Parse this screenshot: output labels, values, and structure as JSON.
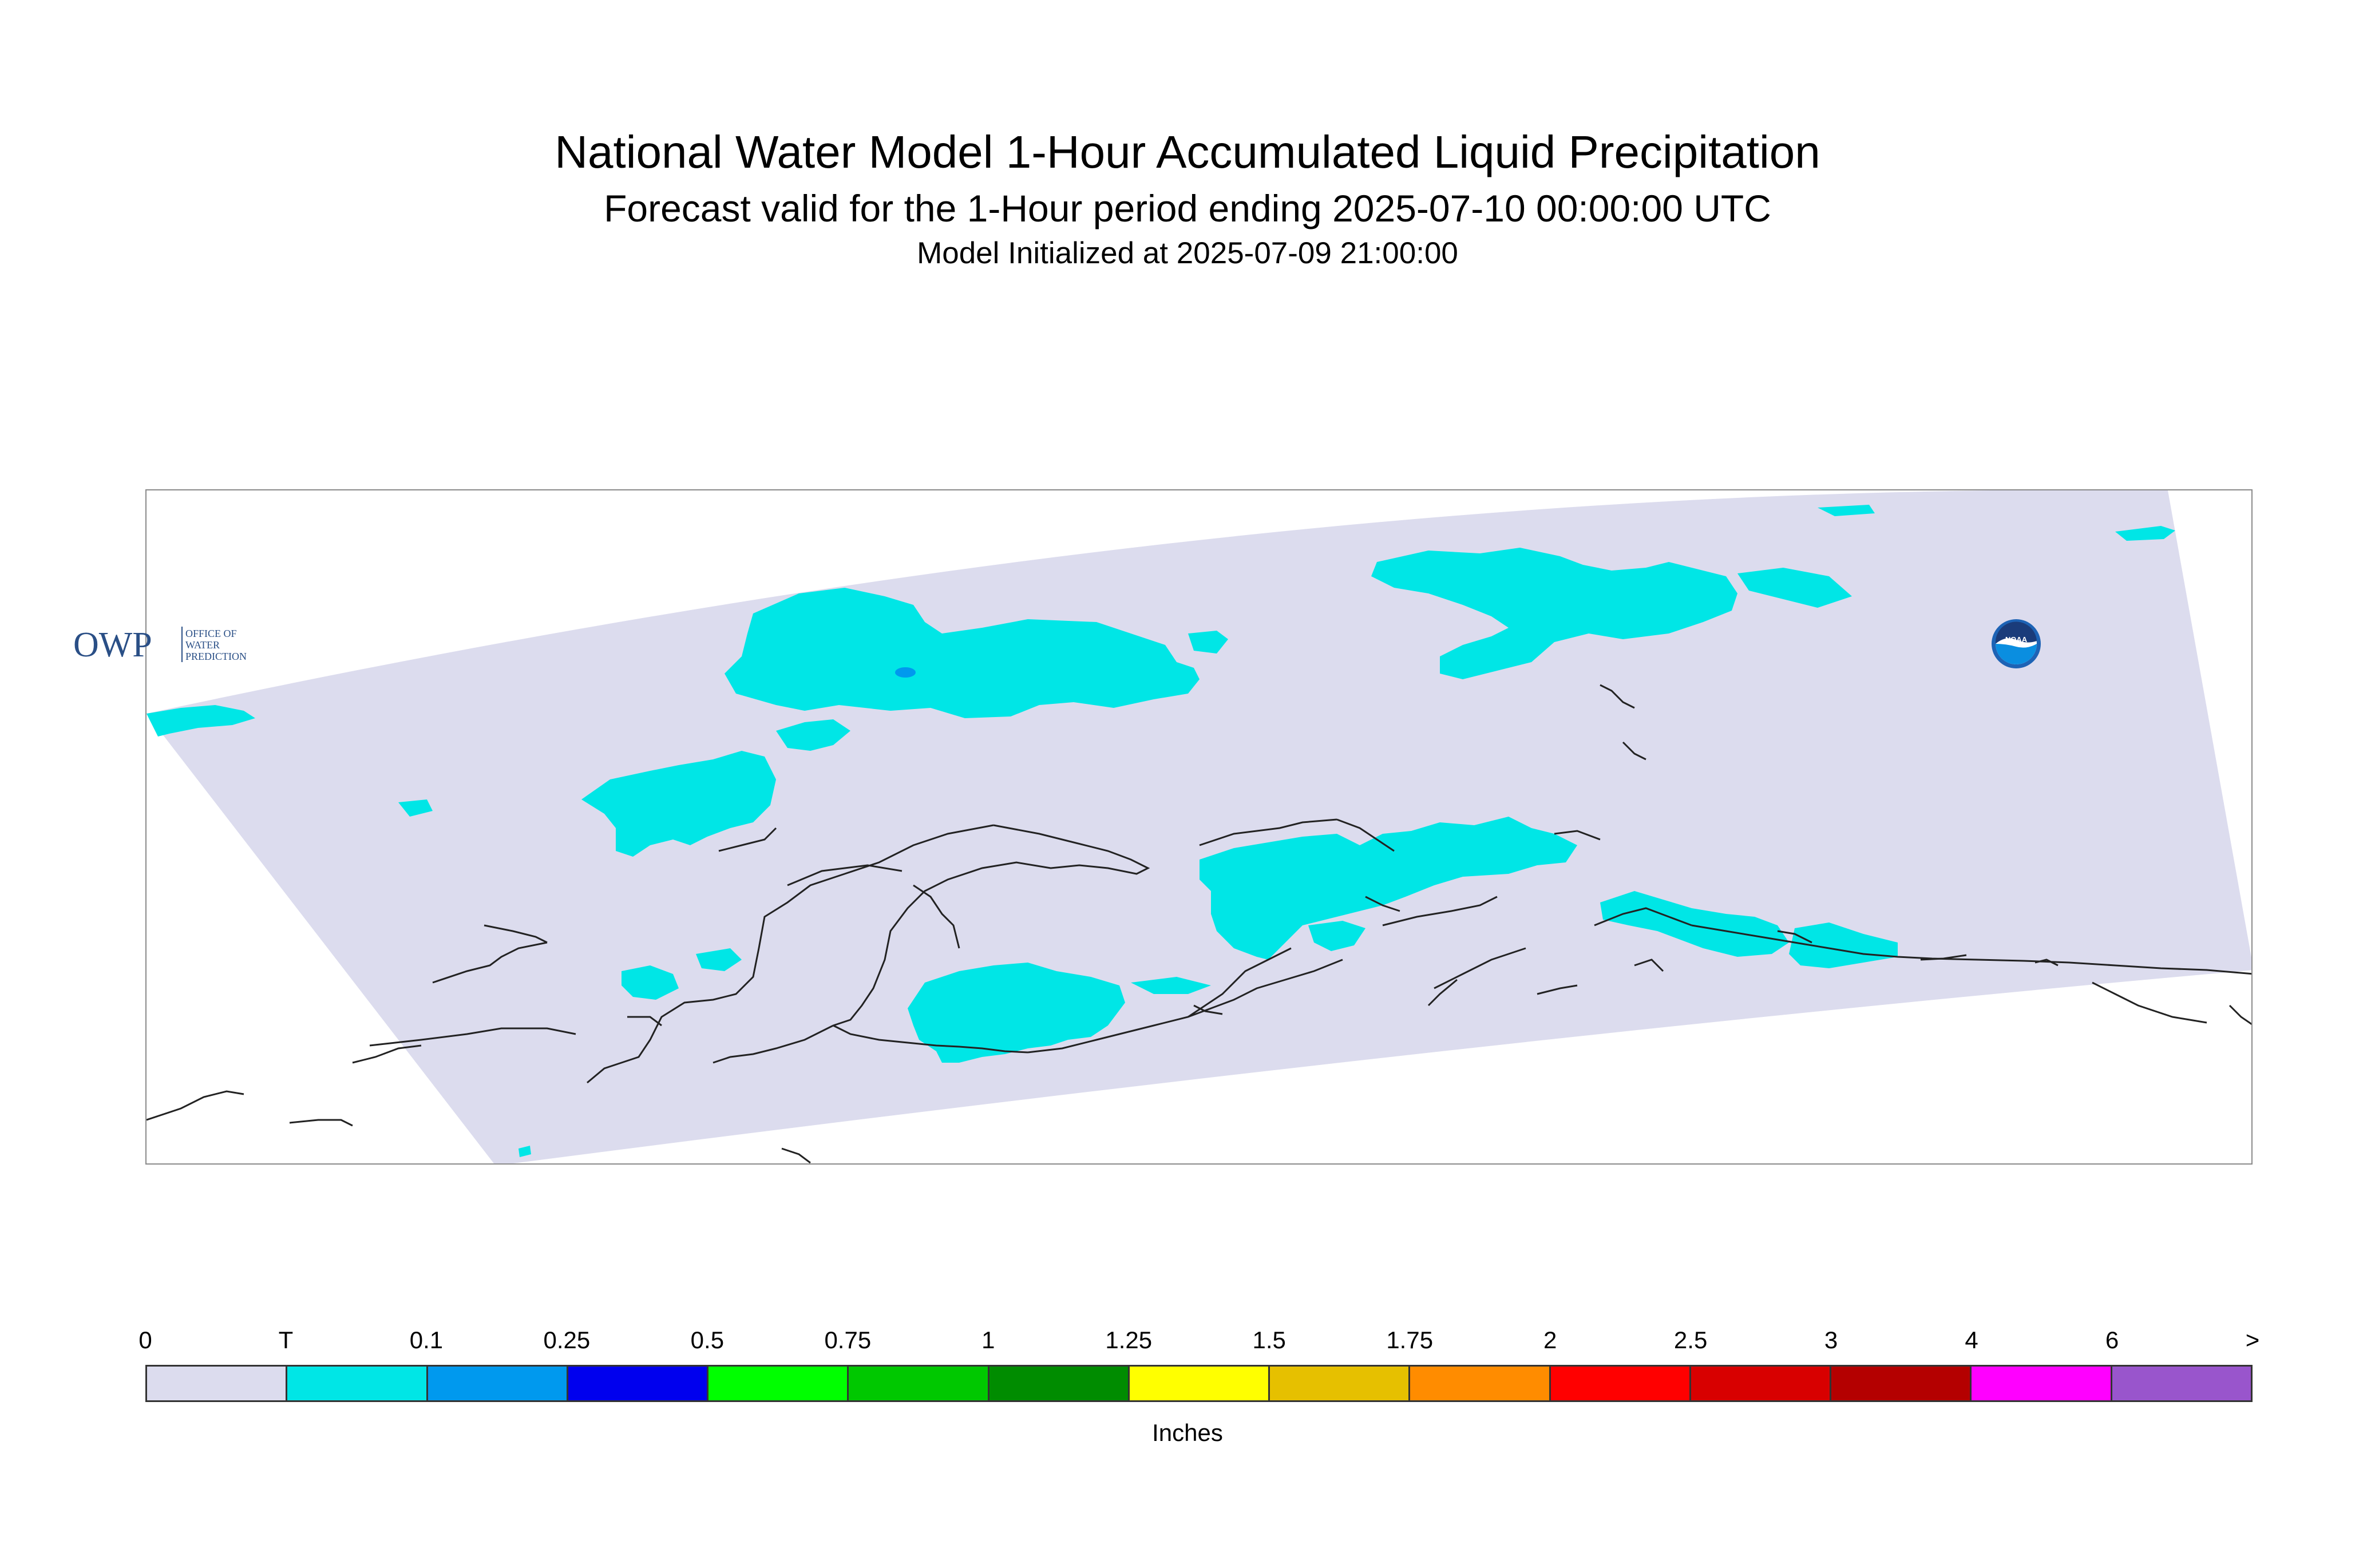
{
  "title": "National Water Model 1-Hour Accumulated Liquid Precipitation",
  "subtitle": "Forecast valid for the 1-Hour period ending 2025-07-10 00:00:00 UTC",
  "init_line": "Model Initialized at 2025-07-09 21:00:00",
  "logos": {
    "owp_mark": "OWP",
    "owp_text": [
      "OFFICE OF",
      "WATER",
      "PREDICTION"
    ],
    "noaa_text": "NOAA"
  },
  "map": {
    "domain_color": "#dcdcee",
    "precip_color": "#00e6e6",
    "coastline_color": "#222222"
  },
  "legend": {
    "units": "Inches",
    "tick_labels": [
      "0",
      "T",
      "0.1",
      "0.25",
      "0.5",
      "0.75",
      "1",
      "1.25",
      "1.5",
      "1.75",
      "2",
      "2.5",
      "3",
      "4",
      "6",
      ">"
    ],
    "colors": [
      "#dcdcee",
      "#00e6e6",
      "#0099ee",
      "#0000ee",
      "#00ff00",
      "#00c800",
      "#008c00",
      "#ffff00",
      "#e6c000",
      "#ff8c00",
      "#ff0000",
      "#d80000",
      "#b40000",
      "#ff00ff",
      "#9955cc"
    ]
  }
}
